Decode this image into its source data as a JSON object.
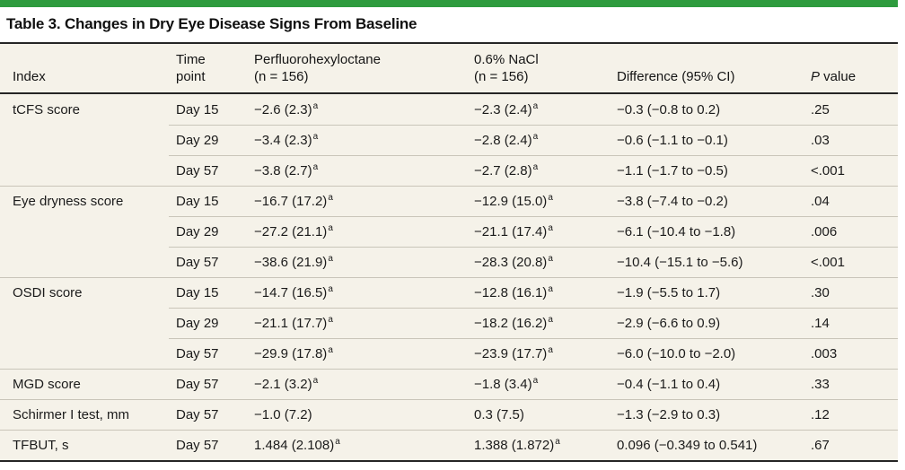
{
  "title": "Table 3. Changes in Dry Eye Disease Signs From Baseline",
  "colors": {
    "accent_green": "#2e9b3e",
    "table_background": "#f5f2e9",
    "rule_dark": "#252525",
    "row_divider": "#c9c5b9"
  },
  "header": {
    "index": "Index",
    "time_line1": "Time",
    "time_line2": "point",
    "pfho_line1": "Perfluorohexyloctane",
    "pfho_line2": "(n = 156)",
    "nacl_line1": "0.6% NaCl",
    "nacl_line2": "(n = 156)",
    "difference": "Difference (95% CI)",
    "p_italic": "P",
    "p_rest": " value"
  },
  "footnote_marker": "a",
  "rows": [
    {
      "index": "tCFS score",
      "time": "Day 15",
      "pfho": "−2.6 (2.3)",
      "pfho_sup": "a",
      "nacl": "−2.3 (2.4)",
      "nacl_sup": "a",
      "diff": "−0.3 (−0.8 to 0.2)",
      "p": ".25"
    },
    {
      "index": "",
      "time": "Day 29",
      "pfho": "−3.4 (2.3)",
      "pfho_sup": "a",
      "nacl": "−2.8 (2.4)",
      "nacl_sup": "a",
      "diff": "−0.6 (−1.1 to −0.1)",
      "p": ".03"
    },
    {
      "index": "",
      "time": "Day 57",
      "pfho": "−3.8 (2.7)",
      "pfho_sup": "a",
      "nacl": "−2.7 (2.8)",
      "nacl_sup": "a",
      "diff": "−1.1 (−1.7 to −0.5)",
      "p": "<.001"
    },
    {
      "index": "Eye dryness score",
      "time": "Day 15",
      "pfho": "−16.7 (17.2)",
      "pfho_sup": "a",
      "nacl": "−12.9 (15.0)",
      "nacl_sup": "a",
      "diff": "−3.8 (−7.4 to −0.2)",
      "p": ".04"
    },
    {
      "index": "",
      "time": "Day 29",
      "pfho": "−27.2 (21.1)",
      "pfho_sup": "a",
      "nacl": "−21.1 (17.4)",
      "nacl_sup": "a",
      "diff": "−6.1 (−10.4 to −1.8)",
      "p": ".006"
    },
    {
      "index": "",
      "time": "Day 57",
      "pfho": "−38.6 (21.9)",
      "pfho_sup": "a",
      "nacl": "−28.3 (20.8)",
      "nacl_sup": "a",
      "diff": "−10.4 (−15.1 to −5.6)",
      "p": "<.001"
    },
    {
      "index": "OSDI score",
      "time": "Day 15",
      "pfho": "−14.7 (16.5)",
      "pfho_sup": "a",
      "nacl": "−12.8 (16.1)",
      "nacl_sup": "a",
      "diff": "−1.9 (−5.5 to 1.7)",
      "p": ".30"
    },
    {
      "index": "",
      "time": "Day 29",
      "pfho": "−21.1 (17.7)",
      "pfho_sup": "a",
      "nacl": "−18.2 (16.2)",
      "nacl_sup": "a",
      "diff": "−2.9 (−6.6 to 0.9)",
      "p": ".14"
    },
    {
      "index": "",
      "time": "Day 57",
      "pfho": "−29.9 (17.8)",
      "pfho_sup": "a",
      "nacl": "−23.9 (17.7)",
      "nacl_sup": "a",
      "diff": "−6.0 (−10.0 to −2.0)",
      "p": ".003"
    },
    {
      "index": "MGD score",
      "time": "Day 57",
      "pfho": "−2.1 (3.2)",
      "pfho_sup": "a",
      "nacl": "−1.8 (3.4)",
      "nacl_sup": "a",
      "diff": "−0.4 (−1.1 to 0.4)",
      "p": ".33"
    },
    {
      "index": "Schirmer I test, mm",
      "time": "Day 57",
      "pfho": "−1.0 (7.2)",
      "pfho_sup": "",
      "nacl": "0.3 (7.5)",
      "nacl_sup": "",
      "diff": "−1.3 (−2.9 to 0.3)",
      "p": ".12"
    },
    {
      "index": "TFBUT, s",
      "time": "Day 57",
      "pfho": "1.484 (2.108)",
      "pfho_sup": "a",
      "nacl": "1.388 (1.872)",
      "nacl_sup": "a",
      "diff": "0.096 (−0.349 to 0.541)",
      "p": ".67"
    }
  ]
}
